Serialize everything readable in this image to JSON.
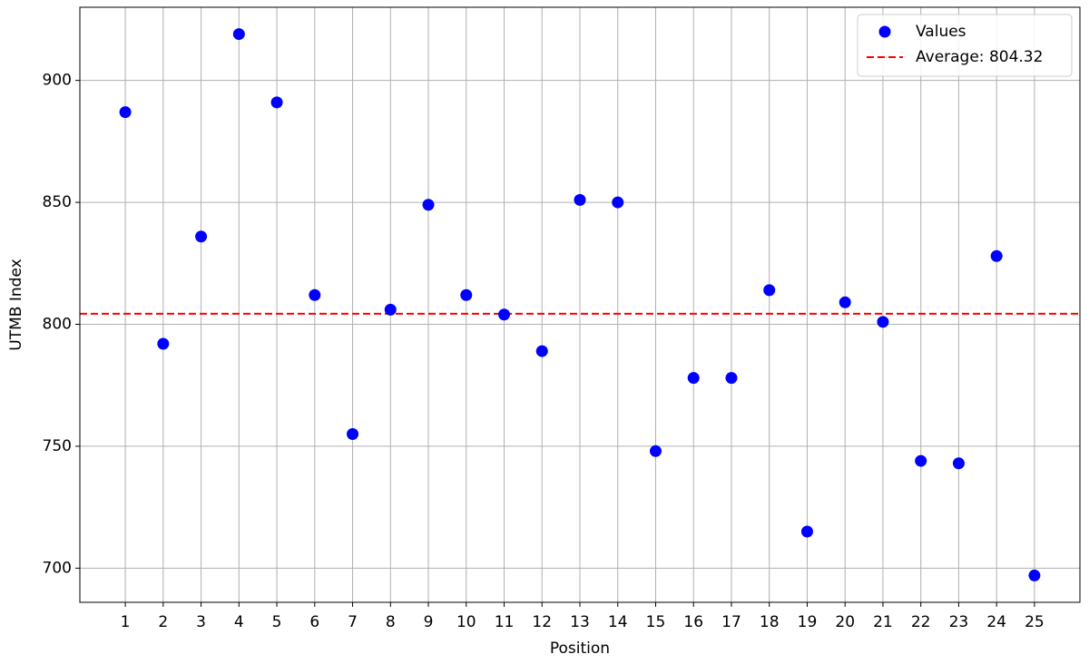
{
  "chart_data": {
    "type": "scatter",
    "x_label": "Position",
    "y_label": "UTMB Index",
    "x": [
      1,
      2,
      3,
      4,
      5,
      6,
      7,
      8,
      9,
      10,
      11,
      12,
      13,
      14,
      15,
      16,
      17,
      18,
      19,
      20,
      21,
      22,
      23,
      24,
      25
    ],
    "series": [
      {
        "name": "Values",
        "color": "#0000ff",
        "values": [
          887,
          792,
          836,
          919,
          891,
          812,
          755,
          806,
          849,
          812,
          804,
          789,
          851,
          850,
          748,
          778,
          778,
          814,
          715,
          809,
          801,
          744,
          743,
          828,
          697
        ]
      }
    ],
    "hlines": [
      {
        "name": "Average: 804.32",
        "value": 804.32,
        "color": "#ff0000"
      }
    ],
    "xlim": [
      -0.2,
      26.2
    ],
    "xticks": [
      1,
      2,
      3,
      4,
      5,
      6,
      7,
      8,
      9,
      10,
      11,
      12,
      13,
      14,
      15,
      16,
      17,
      18,
      19,
      20,
      21,
      22,
      23,
      24,
      25
    ],
    "ylim": [
      686,
      930
    ],
    "yticks": [
      700,
      750,
      800,
      850,
      900
    ],
    "grid": true,
    "legend": "upper right"
  }
}
